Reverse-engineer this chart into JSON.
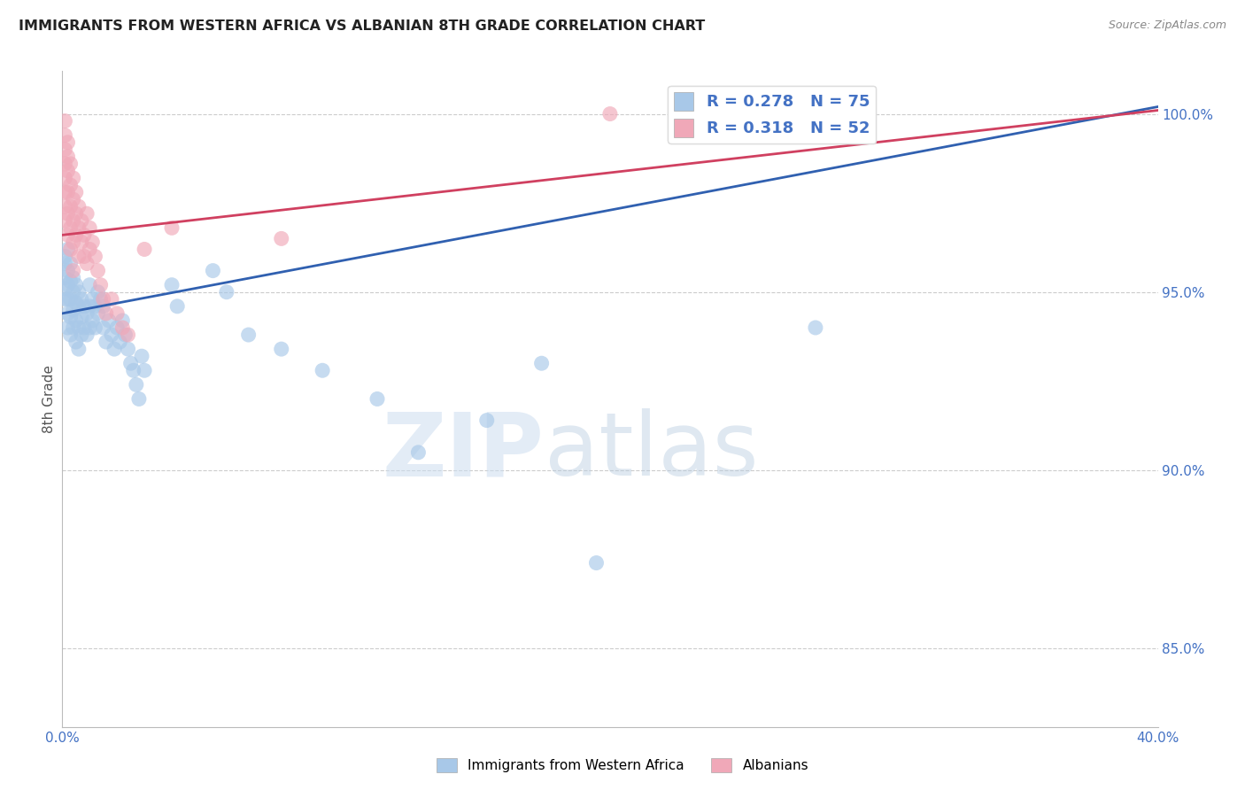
{
  "title": "IMMIGRANTS FROM WESTERN AFRICA VS ALBANIAN 8TH GRADE CORRELATION CHART",
  "source": "Source: ZipAtlas.com",
  "ylabel": "8th Grade",
  "xmin": 0.0,
  "xmax": 0.4,
  "ymin": 0.828,
  "ymax": 1.012,
  "xticks": [
    0.0,
    0.05,
    0.1,
    0.15,
    0.2,
    0.25,
    0.3,
    0.35,
    0.4
  ],
  "xtick_labels": [
    "0.0%",
    "",
    "",
    "",
    "",
    "",
    "",
    "",
    "40.0%"
  ],
  "yticks": [
    0.85,
    0.9,
    0.95,
    1.0
  ],
  "ytick_labels": [
    "85.0%",
    "90.0%",
    "95.0%",
    "100.0%"
  ],
  "grid_color": "#cccccc",
  "background_color": "#ffffff",
  "blue_color": "#a8c8e8",
  "pink_color": "#f0a8b8",
  "blue_line_color": "#3060b0",
  "pink_line_color": "#d04060",
  "R_blue": 0.278,
  "N_blue": 75,
  "R_pink": 0.318,
  "N_pink": 52,
  "legend_label_blue": "Immigrants from Western Africa",
  "legend_label_pink": "Albanians",
  "watermark_zip": "ZIP",
  "watermark_atlas": "atlas",
  "title_color": "#222222",
  "axis_label_color": "#4472c4",
  "blue_line_x": [
    0.0,
    0.4
  ],
  "blue_line_y": [
    0.944,
    1.002
  ],
  "pink_line_x": [
    0.0,
    0.4
  ],
  "pink_line_y": [
    0.966,
    1.001
  ],
  "blue_scatter": [
    [
      0.001,
      0.96
    ],
    [
      0.001,
      0.958
    ],
    [
      0.001,
      0.954
    ],
    [
      0.001,
      0.951
    ],
    [
      0.001,
      0.948
    ],
    [
      0.002,
      0.962
    ],
    [
      0.002,
      0.956
    ],
    [
      0.002,
      0.952
    ],
    [
      0.002,
      0.948
    ],
    [
      0.002,
      0.944
    ],
    [
      0.002,
      0.94
    ],
    [
      0.003,
      0.958
    ],
    [
      0.003,
      0.953
    ],
    [
      0.003,
      0.948
    ],
    [
      0.003,
      0.943
    ],
    [
      0.003,
      0.938
    ],
    [
      0.004,
      0.954
    ],
    [
      0.004,
      0.95
    ],
    [
      0.004,
      0.945
    ],
    [
      0.004,
      0.94
    ],
    [
      0.005,
      0.952
    ],
    [
      0.005,
      0.947
    ],
    [
      0.005,
      0.942
    ],
    [
      0.005,
      0.936
    ],
    [
      0.006,
      0.95
    ],
    [
      0.006,
      0.946
    ],
    [
      0.006,
      0.94
    ],
    [
      0.006,
      0.934
    ],
    [
      0.007,
      0.948
    ],
    [
      0.007,
      0.943
    ],
    [
      0.007,
      0.938
    ],
    [
      0.008,
      0.946
    ],
    [
      0.008,
      0.94
    ],
    [
      0.009,
      0.944
    ],
    [
      0.009,
      0.938
    ],
    [
      0.01,
      0.952
    ],
    [
      0.01,
      0.946
    ],
    [
      0.01,
      0.94
    ],
    [
      0.011,
      0.948
    ],
    [
      0.011,
      0.942
    ],
    [
      0.012,
      0.946
    ],
    [
      0.012,
      0.94
    ],
    [
      0.013,
      0.95
    ],
    [
      0.013,
      0.944
    ],
    [
      0.014,
      0.948
    ],
    [
      0.015,
      0.946
    ],
    [
      0.015,
      0.94
    ],
    [
      0.016,
      0.936
    ],
    [
      0.017,
      0.942
    ],
    [
      0.018,
      0.938
    ],
    [
      0.019,
      0.934
    ],
    [
      0.02,
      0.94
    ],
    [
      0.021,
      0.936
    ],
    [
      0.022,
      0.942
    ],
    [
      0.023,
      0.938
    ],
    [
      0.024,
      0.934
    ],
    [
      0.025,
      0.93
    ],
    [
      0.026,
      0.928
    ],
    [
      0.027,
      0.924
    ],
    [
      0.028,
      0.92
    ],
    [
      0.029,
      0.932
    ],
    [
      0.03,
      0.928
    ],
    [
      0.04,
      0.952
    ],
    [
      0.042,
      0.946
    ],
    [
      0.055,
      0.956
    ],
    [
      0.06,
      0.95
    ],
    [
      0.068,
      0.938
    ],
    [
      0.08,
      0.934
    ],
    [
      0.095,
      0.928
    ],
    [
      0.115,
      0.92
    ],
    [
      0.13,
      0.905
    ],
    [
      0.155,
      0.914
    ],
    [
      0.175,
      0.93
    ],
    [
      0.195,
      0.874
    ],
    [
      0.275,
      0.94
    ]
  ],
  "pink_scatter": [
    [
      0.001,
      0.998
    ],
    [
      0.001,
      0.994
    ],
    [
      0.001,
      0.99
    ],
    [
      0.001,
      0.986
    ],
    [
      0.001,
      0.982
    ],
    [
      0.001,
      0.978
    ],
    [
      0.001,
      0.974
    ],
    [
      0.001,
      0.97
    ],
    [
      0.002,
      0.992
    ],
    [
      0.002,
      0.988
    ],
    [
      0.002,
      0.984
    ],
    [
      0.002,
      0.978
    ],
    [
      0.002,
      0.972
    ],
    [
      0.002,
      0.966
    ],
    [
      0.003,
      0.986
    ],
    [
      0.003,
      0.98
    ],
    [
      0.003,
      0.974
    ],
    [
      0.003,
      0.968
    ],
    [
      0.003,
      0.962
    ],
    [
      0.004,
      0.982
    ],
    [
      0.004,
      0.976
    ],
    [
      0.004,
      0.97
    ],
    [
      0.004,
      0.964
    ],
    [
      0.004,
      0.956
    ],
    [
      0.005,
      0.978
    ],
    [
      0.005,
      0.972
    ],
    [
      0.005,
      0.966
    ],
    [
      0.006,
      0.974
    ],
    [
      0.006,
      0.968
    ],
    [
      0.006,
      0.96
    ],
    [
      0.007,
      0.97
    ],
    [
      0.007,
      0.964
    ],
    [
      0.008,
      0.966
    ],
    [
      0.008,
      0.96
    ],
    [
      0.009,
      0.972
    ],
    [
      0.009,
      0.958
    ],
    [
      0.01,
      0.968
    ],
    [
      0.01,
      0.962
    ],
    [
      0.011,
      0.964
    ],
    [
      0.012,
      0.96
    ],
    [
      0.013,
      0.956
    ],
    [
      0.014,
      0.952
    ],
    [
      0.015,
      0.948
    ],
    [
      0.016,
      0.944
    ],
    [
      0.018,
      0.948
    ],
    [
      0.02,
      0.944
    ],
    [
      0.022,
      0.94
    ],
    [
      0.024,
      0.938
    ],
    [
      0.03,
      0.962
    ],
    [
      0.04,
      0.968
    ],
    [
      0.08,
      0.965
    ],
    [
      0.2,
      1.0
    ]
  ]
}
